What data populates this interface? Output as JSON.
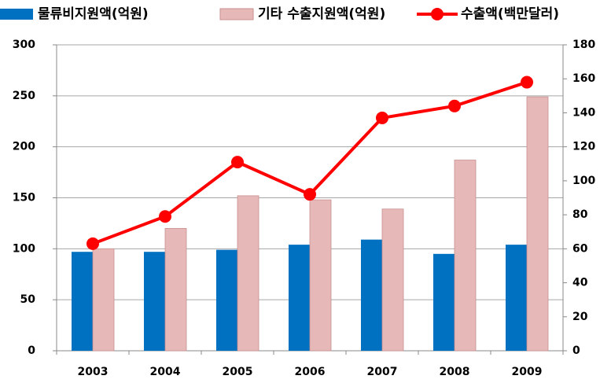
{
  "chart_data": {
    "type": "bar",
    "categories": [
      "2003",
      "2004",
      "2005",
      "2006",
      "2007",
      "2008",
      "2009"
    ],
    "series": [
      {
        "name": "물류비지원액(억원)",
        "color": "#0070c0",
        "type": "bar",
        "values": [
          97,
          97,
          99,
          104,
          109,
          95,
          104
        ]
      },
      {
        "name": "기타 수출지원액(억원)",
        "color": "#e6b9b8",
        "type": "bar",
        "values": [
          100,
          120,
          152,
          148,
          139,
          187,
          249
        ]
      },
      {
        "name": "수출액(백만달러)",
        "color": "#ff0000",
        "type": "line",
        "axis": "y2",
        "values": [
          63,
          79,
          111,
          92,
          137,
          144,
          158
        ]
      }
    ],
    "ylim": [
      0,
      300
    ],
    "yticks": [
      0,
      50,
      100,
      150,
      200,
      250,
      300
    ],
    "y2lim": [
      0,
      180
    ],
    "y2ticks": [
      0,
      20,
      40,
      60,
      80,
      100,
      120,
      140,
      160,
      180
    ],
    "grid": true
  }
}
